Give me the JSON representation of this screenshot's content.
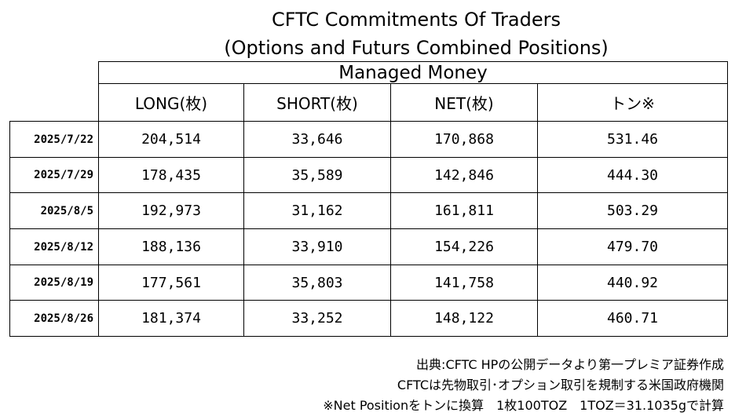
{
  "title": {
    "line1": "CFTC Commitments Of Traders",
    "line2": "(Options and Futurs Combined Positions)"
  },
  "table": {
    "group_header": "Managed Money",
    "columns": [
      "LONG(枚)",
      "SHORT(枚)",
      "NET(枚)",
      "トン※"
    ],
    "rows": [
      {
        "date": "2025/7/22",
        "long": "204,514",
        "short": "33,646",
        "net": "170,868",
        "tons": "531.46"
      },
      {
        "date": "2025/7/29",
        "long": "178,435",
        "short": "35,589",
        "net": "142,846",
        "tons": "444.30"
      },
      {
        "date": "2025/8/5",
        "long": "192,973",
        "short": "31,162",
        "net": "161,811",
        "tons": "503.29"
      },
      {
        "date": "2025/8/12",
        "long": "188,136",
        "short": "33,910",
        "net": "154,226",
        "tons": "479.70"
      },
      {
        "date": "2025/8/19",
        "long": "177,561",
        "short": "35,803",
        "net": "141,758",
        "tons": "440.92"
      },
      {
        "date": "2025/8/26",
        "long": "181,374",
        "short": "33,252",
        "net": "148,122",
        "tons": "460.71"
      }
    ]
  },
  "footnotes": {
    "source": "出典:CFTC HPの公開データより第一プレミア証券作成",
    "cftc_note": "CFTCは先物取引･オプション取引を規制する米国政府機関",
    "conversion": "※Net Positionをトンに換算　1枚100TOZ　1TOZ＝31.1035gで計算"
  }
}
